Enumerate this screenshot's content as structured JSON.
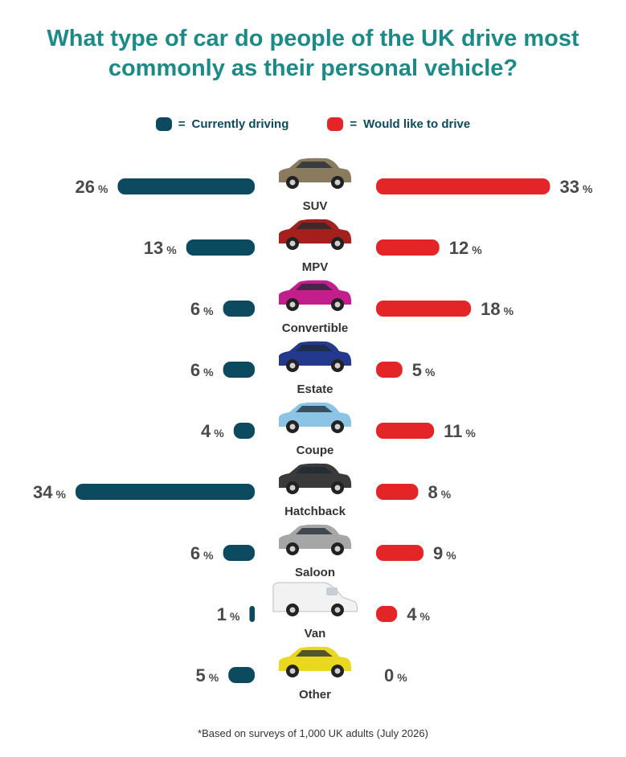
{
  "title": "What type of car do people of the UK drive most commonly as their personal vehicle?",
  "legend": {
    "current_label": "Currently driving",
    "wish_label": "Would like to drive",
    "separator": "="
  },
  "colors": {
    "current": "#0b4a5f",
    "wish": "#e42527",
    "title": "#1c8a87",
    "value_text": "#4a4a4a",
    "category_text": "#333333"
  },
  "chart_data": {
    "type": "bar",
    "categories": [
      "SUV",
      "MPV",
      "Convertible",
      "Estate",
      "Coupe",
      "Hatchback",
      "Saloon",
      "Van",
      "Other"
    ],
    "series": [
      {
        "name": "Currently driving",
        "values": [
          26,
          13,
          6,
          6,
          4,
          34,
          6,
          1,
          5
        ]
      },
      {
        "name": "Would like to drive",
        "values": [
          33,
          12,
          18,
          5,
          11,
          8,
          9,
          4,
          0
        ]
      }
    ],
    "unit": "%",
    "car_icon_colors": [
      "#8a7a5e",
      "#a5201c",
      "#c21e8c",
      "#233a8c",
      "#8cc4e6",
      "#3a3a3a",
      "#a6a6a6",
      "#f2f2f2",
      "#e9d81e"
    ]
  },
  "footnote": "*Based on surveys of 1,000 UK adults (July 2026)"
}
